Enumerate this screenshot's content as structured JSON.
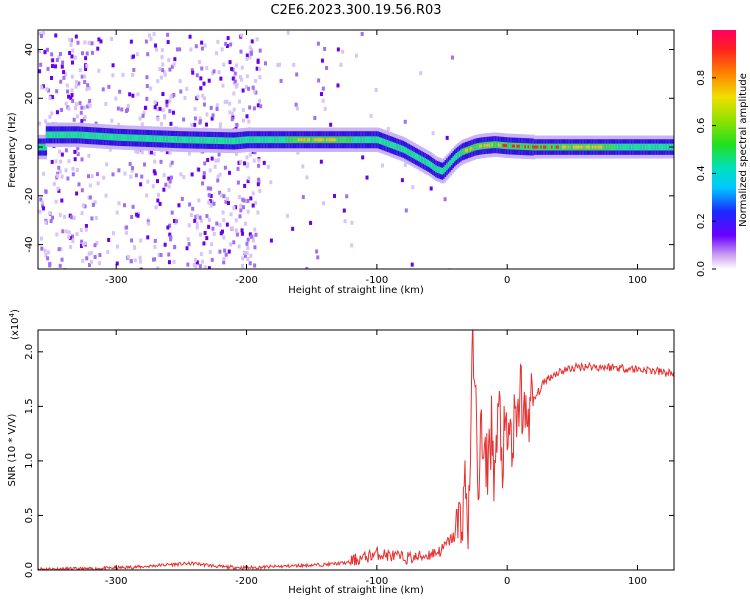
{
  "title": "C2E6.2023.300.19.56.R03",
  "colors": {
    "line": "#e8302f",
    "axis": "#000000",
    "spec_core": "#ff2020",
    "spec_mid": "#20e0a0",
    "spec_edge": "#3010e0",
    "spec_noise": "#8a2be2"
  },
  "chart_data": [
    {
      "type": "heatmap",
      "name": "spectrogram",
      "xlabel": "Height of straight line (km)",
      "ylabel": "Frequency (Hz)",
      "xlim": [
        -360,
        128
      ],
      "ylim": [
        -50,
        48
      ],
      "x_ticks": [
        -300,
        -200,
        -100,
        0,
        100
      ],
      "x_tick_labels": [
        "-300",
        "-200",
        "-100",
        "0",
        "100"
      ],
      "y_ticks": [
        -40,
        -20,
        0,
        20,
        40
      ],
      "y_tick_labels": [
        "-40",
        "-20",
        "0",
        "20",
        "40"
      ],
      "ridge": {
        "x": [
          -355,
          -330,
          -300,
          -250,
          -210,
          -200,
          -170,
          -150,
          -120,
          -100,
          -90,
          -80,
          -70,
          -60,
          -55,
          -50,
          -45,
          -40,
          -35,
          -30,
          -25,
          -20,
          -10,
          0,
          20,
          60,
          128
        ],
        "freq": [
          5,
          5,
          4,
          3,
          2.5,
          3,
          3,
          3,
          3,
          3,
          1,
          -1,
          -4,
          -7,
          -9,
          -10,
          -7,
          -4,
          -2,
          -1,
          0,
          0.5,
          1,
          0.5,
          0,
          0,
          0
        ],
        "amplitude": [
          0.5,
          0.55,
          0.6,
          0.55,
          0.45,
          0.6,
          0.7,
          0.75,
          0.7,
          0.55,
          0.5,
          0.45,
          0.45,
          0.5,
          0.5,
          0.45,
          0.55,
          0.65,
          0.7,
          0.75,
          0.85,
          0.85,
          0.8,
          0.9,
          0.95,
          0.75,
          0.6
        ]
      },
      "colorbar": {
        "label": "Normalized spectral amplitude",
        "range": [
          0,
          1
        ],
        "ticks": [
          0.0,
          0.2,
          0.4,
          0.6,
          0.8
        ],
        "tick_labels": [
          "0.0",
          "0.2",
          "0.4",
          "0.6",
          "0.8"
        ]
      }
    },
    {
      "type": "line",
      "name": "snr",
      "xlabel": "Height of straight line (km)",
      "ylabel": "SNR (10 * V/V)",
      "scale_label": "(x10",
      "scale_exp": "4",
      "scale_close": ")",
      "xlim": [
        -360,
        128
      ],
      "ylim": [
        0,
        2.2
      ],
      "x_ticks": [
        -300,
        -200,
        -100,
        0,
        100
      ],
      "x_tick_labels": [
        "-300",
        "-200",
        "-100",
        "0",
        "100"
      ],
      "y_ticks": [
        0.0,
        0.5,
        1.0,
        1.5,
        2.0
      ],
      "y_tick_labels": [
        "0.0",
        "0.5",
        "1.0",
        "1.5",
        "2.0"
      ],
      "series": [
        {
          "name": "SNR",
          "x": [
            -360,
            -320,
            -300,
            -280,
            -260,
            -240,
            -220,
            -200,
            -180,
            -160,
            -140,
            -120,
            -110,
            -100,
            -90,
            -80,
            -70,
            -60,
            -50,
            -45,
            -40,
            -35,
            -32,
            -30,
            -28,
            -26,
            -25,
            -22,
            -20,
            -18,
            -15,
            -12,
            -10,
            -8,
            -6,
            -4,
            -2,
            0,
            2,
            4,
            6,
            8,
            10,
            12,
            15,
            20,
            25,
            30,
            40,
            50,
            60,
            70,
            80,
            90,
            100,
            110,
            120,
            128
          ],
          "y": [
            0.01,
            0.01,
            0.02,
            0.03,
            0.05,
            0.06,
            0.03,
            0.02,
            0.03,
            0.04,
            0.05,
            0.07,
            0.1,
            0.14,
            0.12,
            0.1,
            0.1,
            0.13,
            0.17,
            0.25,
            0.3,
            0.5,
            0.8,
            0.4,
            1.2,
            2.2,
            1.7,
            0.8,
            1.3,
            0.9,
            1.0,
            1.3,
            0.9,
            1.1,
            1.5,
            1.0,
            1.2,
            1.1,
            1.3,
            1.1,
            1.35,
            1.2,
            1.9,
            1.3,
            1.45,
            1.55,
            1.65,
            1.75,
            1.82,
            1.85,
            1.87,
            1.86,
            1.86,
            1.85,
            1.84,
            1.83,
            1.81,
            1.8
          ]
        }
      ]
    }
  ]
}
